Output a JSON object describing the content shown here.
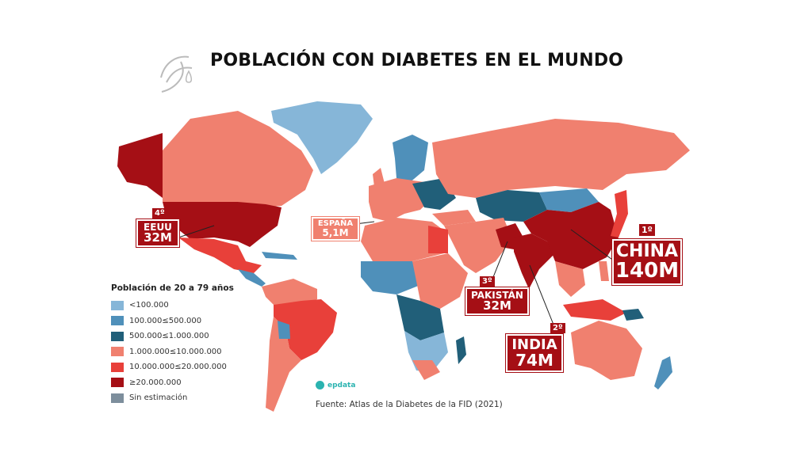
{
  "title": "POBLACIÓN CON DIABETES EN EL MUNDO",
  "colors": {
    "lt100k": "#86b6d8",
    "100k_500k": "#4f90ba",
    "500k_1m": "#215f79",
    "1m_10m": "#f0806f",
    "10m_20m": "#e8403a",
    "gt20m": "#a50f15",
    "sin_estimacion": "#7d8e9c"
  },
  "legend": {
    "title": "Población de 20 a 79 años",
    "items": [
      {
        "label": "<100.000",
        "color": "#86b6d8"
      },
      {
        "label": "100.000≤500.000",
        "color": "#4f90ba"
      },
      {
        "label": "500.000≤1.000.000",
        "color": "#215f79"
      },
      {
        "label": "1.000.000≤10.000.000",
        "color": "#f0806f"
      },
      {
        "label": "10.000.000≤20.000.000",
        "color": "#e8403a"
      },
      {
        "label": "≥20.000.000",
        "color": "#a50f15"
      },
      {
        "label": "Sin estimación",
        "color": "#7d8e9c"
      }
    ]
  },
  "callouts": {
    "china": {
      "rank": "1º",
      "name": "CHINA",
      "value": "140M"
    },
    "india": {
      "rank": "2º",
      "name": "INDIA",
      "value": "74M"
    },
    "pakistan": {
      "rank": "3º",
      "name": "PAKISTÁN",
      "value": "32M"
    },
    "eeuu": {
      "rank": "4º",
      "name": "EEUU",
      "value": "32M"
    },
    "espana": {
      "name": "ESPAÑA",
      "value": "5,1M"
    }
  },
  "brand": "epdata",
  "source": "Fuente: Atlas de la Diabetes de la FID (2021)"
}
